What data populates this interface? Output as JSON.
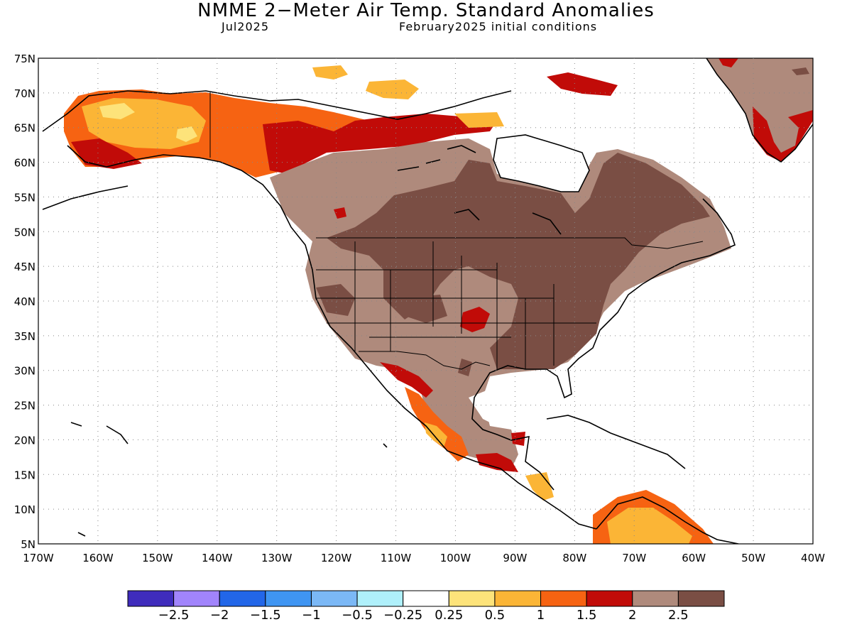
{
  "header": {
    "title": "NMME 2−Meter Air Temp. Standard Anomalies",
    "valid_month": "Jul2025",
    "init_conditions": "February2025 initial conditions"
  },
  "map": {
    "lat_ticks": [
      "75N",
      "70N",
      "65N",
      "60N",
      "55N",
      "50N",
      "45N",
      "40N",
      "35N",
      "30N",
      "25N",
      "20N",
      "15N",
      "10N",
      "5N"
    ],
    "lon_ticks": [
      "170W",
      "160W",
      "150W",
      "140W",
      "130W",
      "120W",
      "110W",
      "100W",
      "90W",
      "80W",
      "70W",
      "60W",
      "50W",
      "40W"
    ],
    "lat_range": [
      5,
      75
    ],
    "lon_range": [
      -170,
      -40
    ],
    "grid": "dotted"
  },
  "colorbar": {
    "colors": [
      "#3f2cbc",
      "#a184fc",
      "#2266e8",
      "#3f95f2",
      "#7bb8f6",
      "#aff0fb",
      "#ffffff",
      "#fde37a",
      "#fbb536",
      "#f66312",
      "#c10b08",
      "#af8a7c",
      "#7a4e44"
    ],
    "labels": [
      "−2.5",
      "−2",
      "−1.5",
      "−1",
      "−0.5",
      "−0.25",
      "0.25",
      "0.5",
      "1",
      "1.5",
      "2",
      "2.5"
    ]
  }
}
